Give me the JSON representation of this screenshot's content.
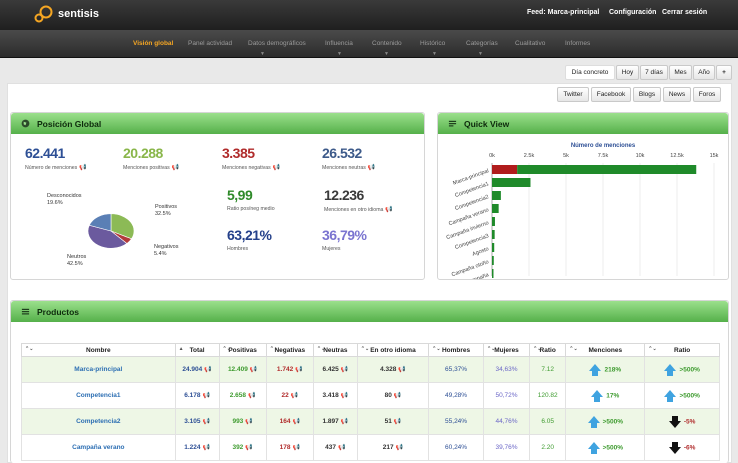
{
  "brand": {
    "name": "sentisis"
  },
  "topnav": {
    "feed": "Feed: Marca-principal",
    "config": "Configuración",
    "logout": "Cerrar sesión"
  },
  "nav": [
    {
      "label": "Visión global",
      "active": true,
      "caret": false
    },
    {
      "label": "Panel actividad",
      "active": false,
      "caret": false
    },
    {
      "label": "Datos demográficos",
      "active": false,
      "caret": true
    },
    {
      "label": "Influencia",
      "active": false,
      "caret": true
    },
    {
      "label": "Contenido",
      "active": false,
      "caret": true
    },
    {
      "label": "Histórico",
      "active": false,
      "caret": true
    },
    {
      "label": "Categorías",
      "active": false,
      "caret": true
    },
    {
      "label": "Cualitativo",
      "active": false,
      "caret": false
    },
    {
      "label": "Informes",
      "active": false,
      "caret": false
    }
  ],
  "range": {
    "dia": "Día concreto",
    "hoy": "Hoy",
    "7d": "7 días",
    "mes": "Mes",
    "ano": "Año",
    "add": "+"
  },
  "sources": {
    "twitter": "Twitter",
    "facebook": "Facebook",
    "blogs": "Blogs",
    "news": "News",
    "foros": "Foros"
  },
  "global": {
    "title": "Posición Global",
    "menciones": {
      "value": "62.441",
      "label": "Número de menciones"
    },
    "positivas": {
      "value": "20.288",
      "label": "Menciones positivas"
    },
    "negativas": {
      "value": "3.385",
      "label": "Menciones negativas"
    },
    "neutras": {
      "value": "26.532",
      "label": "Menciones neutras"
    },
    "ratio": {
      "value": "5,99",
      "label": "Ratio pos/neg medio"
    },
    "otro": {
      "value": "12.236",
      "label": "Menciones en otro idioma"
    },
    "hombres": {
      "value": "63,21%",
      "label": "Hombres"
    },
    "mujeres": {
      "value": "36,79%",
      "label": "Mujeres"
    },
    "pie": [
      {
        "name": "Positivos",
        "pct": "32.5%",
        "value": 32.5,
        "color": "#8cba56"
      },
      {
        "name": "Negativos",
        "pct": "5.4%",
        "value": 5.4,
        "color": "#b23a3a"
      },
      {
        "name": "Neutros",
        "pct": "42.5%",
        "value": 42.5,
        "color": "#6b5a9e"
      },
      {
        "name": "Desconocidos",
        "pct": "19.6%",
        "value": 19.6,
        "color": "#5a7fb5"
      }
    ]
  },
  "quick": {
    "title": "Quick View"
  },
  "chart_data": {
    "type": "bar",
    "title": "Número de menciones",
    "orientation": "horizontal",
    "categories": [
      "Marca-principal",
      "Competencia1",
      "Competencia2",
      "Campaña verano",
      "Campaña invierno",
      "Competencia3",
      "Agosto",
      "Campaña otoño",
      "Campaña"
    ],
    "series": [
      {
        "values": [
          1700,
          0,
          0,
          0,
          0,
          0,
          0,
          0,
          0
        ],
        "color": "#b01c1c"
      },
      {
        "values": [
          12100,
          2600,
          600,
          450,
          200,
          180,
          150,
          120,
          100
        ],
        "color": "#1f8a2a"
      }
    ],
    "xlim": [
      0,
      15000
    ],
    "xticks": [
      "0k",
      "2.5k",
      "5k",
      "7.5k",
      "10k",
      "12.5k",
      "15k"
    ]
  },
  "productos": {
    "title": "Productos",
    "headers": [
      "Nombre",
      "Total",
      "Positivas",
      "Negativas",
      "Neutras",
      "En otro idioma",
      "Hombres",
      "Mujeres",
      "Ratio",
      "Menciones",
      "Ratio"
    ],
    "rows": [
      {
        "name": "Marca-principal",
        "total": "24.904",
        "pos": "12.409",
        "neg": "1.742",
        "neu": "6.425",
        "otro": "4.328",
        "h": "65,37%",
        "m": "34,63%",
        "ratio": "7.12",
        "menc": "218%",
        "menc_dir": "up",
        "rt": ">500%",
        "rt_dir": "up"
      },
      {
        "name": "Competencia1",
        "total": "6.178",
        "pos": "2.658",
        "neg": "22",
        "neu": "3.418",
        "otro": "80",
        "h": "49,28%",
        "m": "50,72%",
        "ratio": "120.82",
        "menc": "17%",
        "menc_dir": "up",
        "rt": ">500%",
        "rt_dir": "up"
      },
      {
        "name": "Competencia2",
        "total": "3.105",
        "pos": "993",
        "neg": "164",
        "neu": "1.897",
        "otro": "51",
        "h": "55,24%",
        "m": "44,76%",
        "ratio": "6.05",
        "menc": ">500%",
        "menc_dir": "up",
        "rt": "-5%",
        "rt_dir": "down"
      },
      {
        "name": "Campaña verano",
        "total": "1.224",
        "pos": "392",
        "neg": "178",
        "neu": "437",
        "otro": "217",
        "h": "60,24%",
        "m": "39,76%",
        "ratio": "2.20",
        "menc": ">500%",
        "menc_dir": "up",
        "rt": "-6%",
        "rt_dir": "down"
      }
    ]
  }
}
